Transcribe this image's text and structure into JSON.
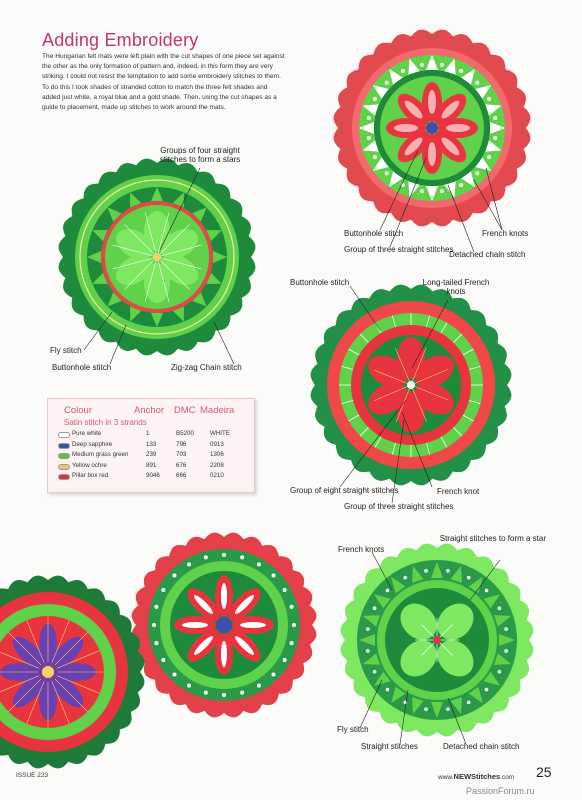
{
  "page": {
    "title": "Adding Embroidery",
    "intro": "The Hungarian felt mats were left plain with the cut shapes of one piece set against the other as the only formation of pattern and, indeed, in this form they are very striking. I could not resist the temptation to add some embroidery stitches to them. To do this I took shades of stranded cotton to match the three felt shades and added just white, a royal blue and a gold shade. Then, using the cut shapes as a guide to placement, made up stitches to work around the mats."
  },
  "labels": {
    "groups_four": "Groups of four straight stitches to form a stars",
    "fly_stitch_1": "Fly stitch",
    "buttonhole_1": "Buttonhole stitch",
    "zigzag_chain": "Zig-zag Chain stitch",
    "buttonhole_2": "Buttonhole stitch",
    "group_three_1": "Group of three straight stitches",
    "french_knots_1": "French knots",
    "detached_chain_1": "Detached chain stitch",
    "buttonhole_3": "Buttonhole stitch",
    "long_tailed": "Long-tailed French knots",
    "group_eight": "Group of eight straight stitches",
    "group_three_2": "Group of three straight stitches",
    "french_knot": "French knot",
    "french_knots_2": "French knots",
    "straight_star": "Straight stitches to form a star",
    "fly_stitch_2": "Fly stitch",
    "straight_stitches": "Straight stitches",
    "detached_chain_2": "Detached chain stitch"
  },
  "thread_table": {
    "headers": [
      "Colour",
      "Anchor",
      "DMC",
      "Madeira"
    ],
    "subtitle": "Satin stitch in 3 strands",
    "rows": [
      {
        "colour": "Pure white",
        "anchor": "1",
        "dmc": "B5200",
        "madeira": "WHITE",
        "swatch": "#ffffff"
      },
      {
        "colour": "Deep sapphire",
        "anchor": "133",
        "dmc": "796",
        "madeira": "0913",
        "swatch": "#3a4fb0"
      },
      {
        "colour": "Medium grass green",
        "anchor": "239",
        "dmc": "703",
        "madeira": "1306",
        "swatch": "#5fc040"
      },
      {
        "colour": "Yellow ochre",
        "anchor": "891",
        "dmc": "676",
        "madeira": "2208",
        "swatch": "#e8c870"
      },
      {
        "colour": "Pillar box red",
        "anchor": "9046",
        "dmc": "666",
        "madeira": "0210",
        "swatch": "#e03040"
      }
    ]
  },
  "footer": {
    "issue": "ISSUE 223",
    "site_prefix": "www.",
    "site_brand": "NEWStitches",
    "site_suffix": ".com",
    "page_number": "25",
    "watermark": "PassionForum.ru"
  },
  "colors": {
    "title": "#c8326e",
    "felt_red": "#e8343f",
    "felt_dark_green": "#1e8a3c",
    "felt_bright_green": "#5fd24a",
    "felt_light_green": "#7ee860",
    "table_text": "#d05a7a"
  }
}
